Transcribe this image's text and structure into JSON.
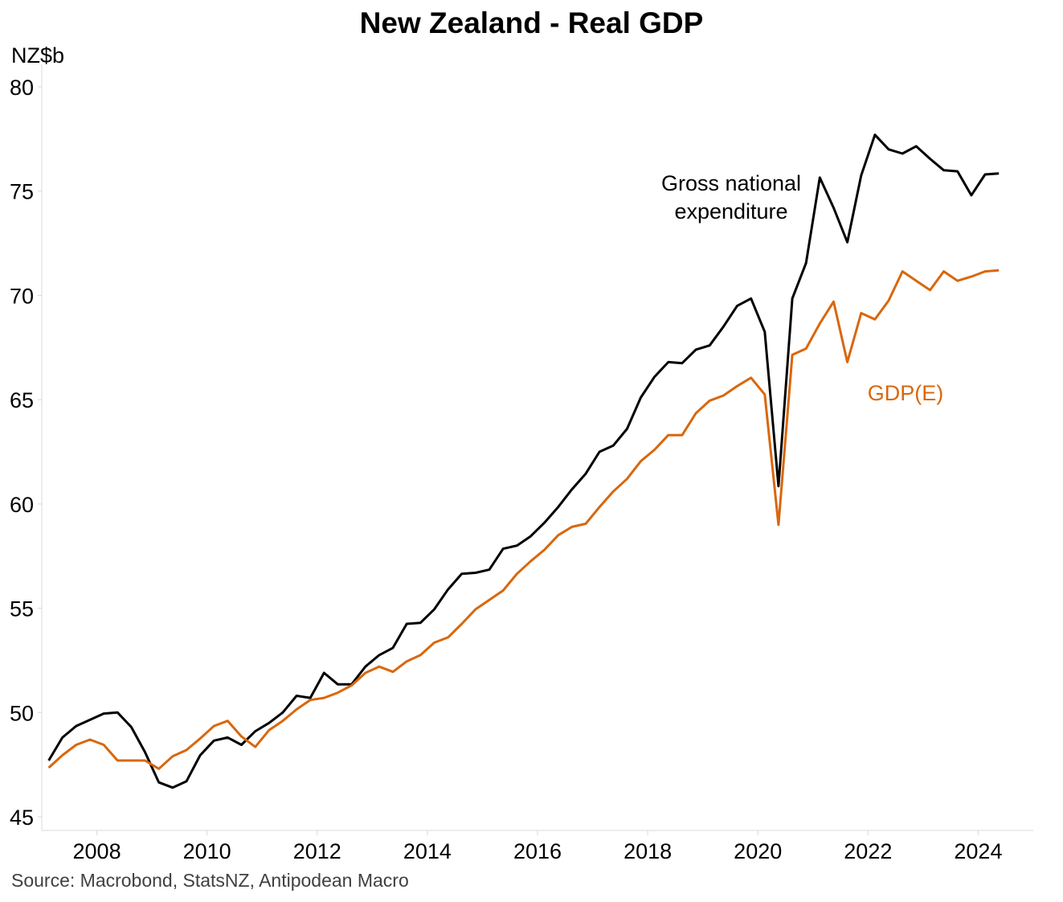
{
  "chart_data": {
    "type": "line",
    "title": "New Zealand - Real GDP",
    "ylabel": "NZ$b",
    "xlabel": "",
    "ylim": [
      45,
      80
    ],
    "xlim": [
      2007.0,
      2025.0
    ],
    "yticks": [
      45,
      50,
      55,
      60,
      65,
      70,
      75,
      80
    ],
    "xticks": [
      2008,
      2010,
      2012,
      2014,
      2016,
      2018,
      2020,
      2022,
      2024
    ],
    "grid": false,
    "legend": "direct labels on lines",
    "source": "Source: Macrobond, StatsNZ, Antipodean Macro",
    "x": [
      2007.125,
      2007.375,
      2007.625,
      2007.875,
      2008.125,
      2008.375,
      2008.625,
      2008.875,
      2009.125,
      2009.375,
      2009.625,
      2009.875,
      2010.125,
      2010.375,
      2010.625,
      2010.875,
      2011.125,
      2011.375,
      2011.625,
      2011.875,
      2012.125,
      2012.375,
      2012.625,
      2012.875,
      2013.125,
      2013.375,
      2013.625,
      2013.875,
      2014.125,
      2014.375,
      2014.625,
      2014.875,
      2015.125,
      2015.375,
      2015.625,
      2015.875,
      2016.125,
      2016.375,
      2016.625,
      2016.875,
      2017.125,
      2017.375,
      2017.625,
      2017.875,
      2018.125,
      2018.375,
      2018.625,
      2018.875,
      2019.125,
      2019.375,
      2019.625,
      2019.875,
      2020.125,
      2020.375,
      2020.625,
      2020.875,
      2021.125,
      2021.375,
      2021.625,
      2021.875,
      2022.125,
      2022.375,
      2022.625,
      2022.875,
      2023.125,
      2023.375,
      2023.625,
      2023.875,
      2024.125,
      2024.375
    ],
    "series": [
      {
        "name": "Gross national expenditure",
        "label_lines": [
          "Gross national",
          "expenditure"
        ],
        "color": "#000000",
        "values": [
          47.7,
          48.8,
          49.35,
          49.65,
          49.95,
          50.0,
          49.3,
          48.1,
          46.65,
          46.4,
          46.7,
          47.95,
          48.65,
          48.8,
          48.45,
          49.1,
          49.5,
          50.0,
          50.8,
          50.7,
          51.9,
          51.35,
          51.35,
          52.2,
          52.75,
          53.1,
          54.25,
          54.3,
          54.95,
          55.9,
          56.65,
          56.7,
          56.85,
          57.85,
          58.0,
          58.45,
          59.1,
          59.85,
          60.7,
          61.45,
          62.5,
          62.8,
          63.6,
          65.1,
          66.1,
          66.8,
          66.75,
          67.4,
          67.6,
          68.5,
          69.5,
          69.85,
          68.25,
          60.85,
          69.85,
          71.55,
          75.65,
          74.2,
          72.55,
          75.75,
          77.7,
          77.0,
          76.8,
          77.15,
          76.55,
          76.0,
          75.95,
          74.8,
          75.8,
          75.85
        ]
      },
      {
        "name": "GDP(E)",
        "label_lines": [
          "GDP(E)"
        ],
        "color": "#D9670C",
        "values": [
          47.35,
          47.95,
          48.45,
          48.7,
          48.45,
          47.7,
          47.7,
          47.7,
          47.3,
          47.9,
          48.2,
          48.75,
          49.35,
          49.6,
          48.85,
          48.35,
          49.15,
          49.6,
          50.15,
          50.6,
          50.7,
          50.95,
          51.3,
          51.9,
          52.2,
          51.95,
          52.45,
          52.75,
          53.35,
          53.6,
          54.25,
          54.95,
          55.4,
          55.85,
          56.65,
          57.25,
          57.8,
          58.5,
          58.9,
          59.05,
          59.85,
          60.6,
          61.2,
          62.05,
          62.6,
          63.3,
          63.3,
          64.35,
          64.95,
          65.2,
          65.65,
          66.05,
          65.25,
          59.0,
          67.15,
          67.45,
          68.65,
          69.7,
          66.8,
          69.15,
          68.85,
          69.75,
          71.15,
          70.7,
          70.25,
          71.15,
          70.7,
          70.9,
          71.15,
          71.2
        ]
      }
    ]
  }
}
